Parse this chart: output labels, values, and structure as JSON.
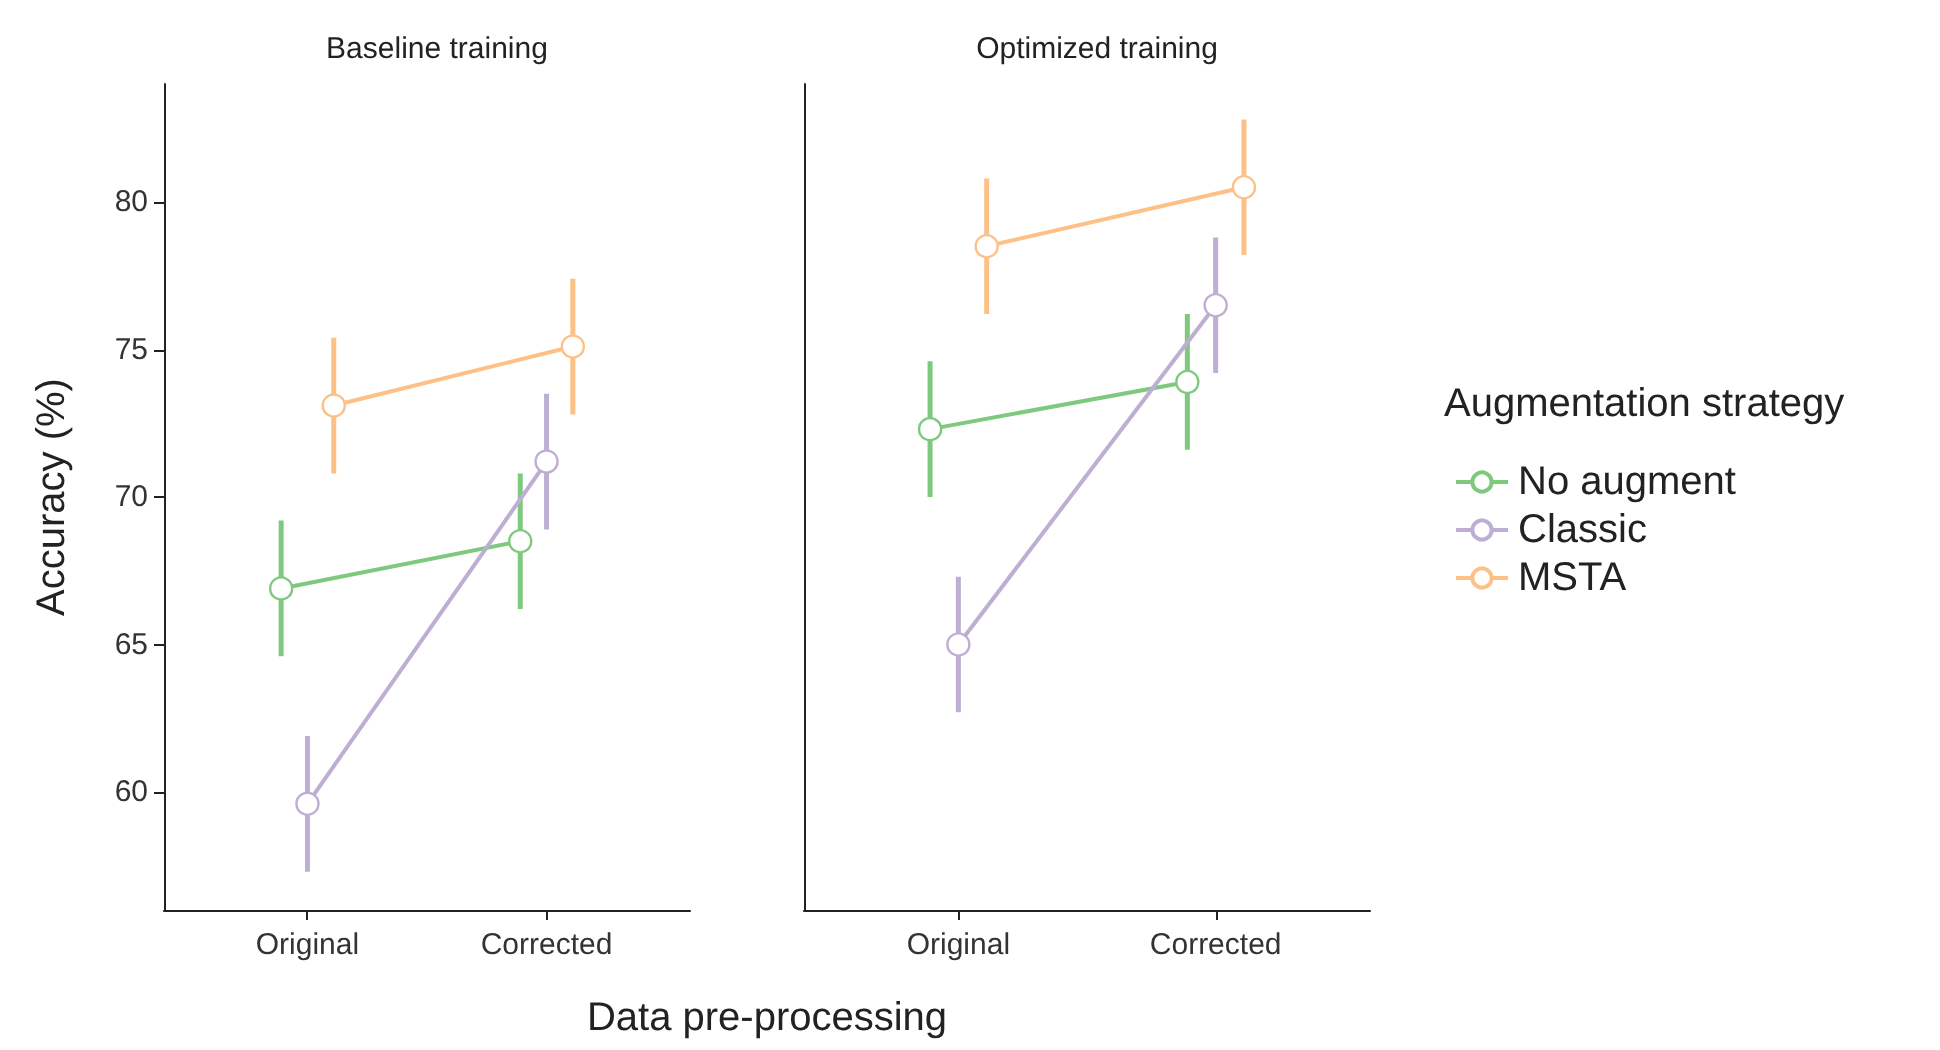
{
  "chart_data": [
    {
      "type": "line",
      "title": "Baseline training",
      "xlabel": "Data pre-processing",
      "ylabel": "Accuracy (%)",
      "categories": [
        "Original",
        "Corrected"
      ],
      "ylim": [
        56,
        84
      ],
      "yticks": [
        60,
        65,
        70,
        75,
        80
      ],
      "grid": false,
      "legend": false,
      "marker": "circle",
      "series": [
        {
          "color": "#7fc97f",
          "values": [
            66.9,
            68.5
          ],
          "errors": [
            2.3,
            2.3
          ]
        },
        {
          "color": "#beaed4",
          "values": [
            59.6,
            71.2
          ],
          "errors": [
            2.3,
            2.3
          ]
        },
        {
          "color": "#fdc086",
          "values": [
            73.1,
            75.1
          ],
          "errors": [
            2.3,
            2.3
          ]
        }
      ]
    },
    {
      "type": "line",
      "title": "Optimized training",
      "legend_title": "Augmentation strategy",
      "categories": [
        "Original",
        "Corrected"
      ],
      "ylim": [
        56,
        84
      ],
      "yticks": [
        60,
        65,
        70,
        75,
        80
      ],
      "tick_labels": "x",
      "grid": false,
      "legend": "right",
      "marker": "circle",
      "series": [
        {
          "name": "No augment",
          "color": "#7fc97f",
          "values": [
            72.3,
            73.9
          ],
          "errors": [
            2.3,
            2.3
          ]
        },
        {
          "name": "Classic",
          "color": "#beaed4",
          "values": [
            65.0,
            76.5
          ],
          "errors": [
            2.3,
            2.3
          ]
        },
        {
          "name": "MSTA",
          "color": "#fdc086",
          "values": [
            78.5,
            80.5
          ],
          "errors": [
            2.3,
            2.3
          ]
        }
      ]
    }
  ]
}
